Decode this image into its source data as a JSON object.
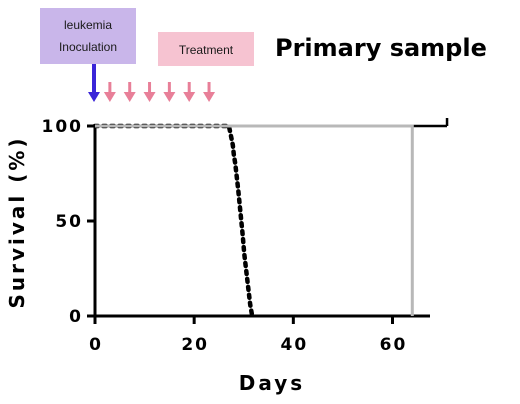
{
  "chart_data": {
    "type": "line",
    "title": "Primary sample",
    "xlabel": "Days",
    "ylabel": "Survival (%)",
    "xlim": [
      0,
      72
    ],
    "ylim": [
      0,
      100
    ],
    "x_ticks": [
      0,
      20,
      40,
      60
    ],
    "y_ticks": [
      0,
      50,
      100
    ],
    "grid": false,
    "annotations": {
      "inoculation": {
        "label_lines": [
          "leukemia",
          "Inoculation"
        ],
        "day": 0,
        "color": "#3a25d8",
        "box_color": "#c9b6ea"
      },
      "treatment": {
        "label": "Treatment",
        "days": [
          3,
          7,
          11,
          15,
          19,
          23
        ],
        "color": "#e87f98",
        "box_color": "#f6c3d1"
      }
    },
    "series": [
      {
        "style": "dotted",
        "color": "#000000",
        "x": [
          0,
          27,
          27.4,
          27.8,
          28,
          28.3,
          28.6,
          28.9,
          29.2,
          29.5,
          29.8,
          30.1,
          30.5,
          30.9,
          31.3,
          31.7
        ],
        "y": [
          100,
          100,
          95,
          90,
          85,
          80,
          73,
          66,
          58,
          50,
          42,
          33,
          24,
          15,
          6,
          0
        ]
      },
      {
        "style": "solid",
        "color": "#000000",
        "x": [
          0,
          71
        ],
        "y": [
          100,
          100
        ]
      },
      {
        "style": "solid",
        "color": "#b8b8b8",
        "x": [
          0,
          64,
          64
        ],
        "y": [
          100,
          100,
          0
        ]
      }
    ]
  }
}
